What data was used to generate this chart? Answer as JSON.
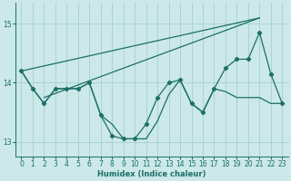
{
  "xlabel": "Humidex (Indice chaleur)",
  "background_color": "#cce8e8",
  "grid_color": "#aad4d4",
  "line_color": "#1a7068",
  "xlim": [
    -0.5,
    23.5
  ],
  "ylim": [
    12.75,
    15.35
  ],
  "yticks": [
    13,
    14,
    15
  ],
  "xticks": [
    0,
    1,
    2,
    3,
    4,
    5,
    6,
    7,
    8,
    9,
    10,
    11,
    12,
    13,
    14,
    15,
    16,
    17,
    18,
    19,
    20,
    21,
    22,
    23
  ],
  "series_main_x": [
    0,
    1,
    2,
    3,
    4,
    5,
    6,
    7,
    8,
    9,
    10,
    11,
    12,
    13,
    14,
    15,
    16,
    17,
    18,
    19,
    20,
    21,
    22,
    23
  ],
  "series_main_y": [
    14.2,
    13.9,
    13.65,
    13.9,
    13.9,
    13.9,
    14.0,
    13.45,
    13.3,
    13.05,
    13.05,
    13.05,
    13.35,
    13.8,
    14.05,
    13.65,
    13.5,
    13.9,
    13.85,
    13.75,
    13.75,
    13.75,
    13.65,
    13.65
  ],
  "series_zigzag_x": [
    0,
    1,
    2,
    3,
    4,
    5,
    6,
    7,
    8,
    9,
    10,
    11,
    12,
    13,
    14,
    15,
    16,
    17,
    18,
    19,
    20,
    21,
    22,
    23
  ],
  "series_zigzag_y": [
    14.2,
    13.9,
    13.65,
    13.9,
    13.9,
    13.9,
    14.0,
    13.45,
    13.1,
    13.05,
    13.05,
    13.3,
    13.75,
    14.0,
    14.05,
    13.65,
    13.5,
    13.9,
    14.25,
    14.4,
    14.4,
    14.85,
    14.15,
    13.65
  ],
  "trend_x": [
    2,
    21
  ],
  "trend_y": [
    13.75,
    15.1
  ],
  "trend2_x": [
    0,
    21
  ],
  "trend2_y": [
    14.2,
    15.1
  ]
}
